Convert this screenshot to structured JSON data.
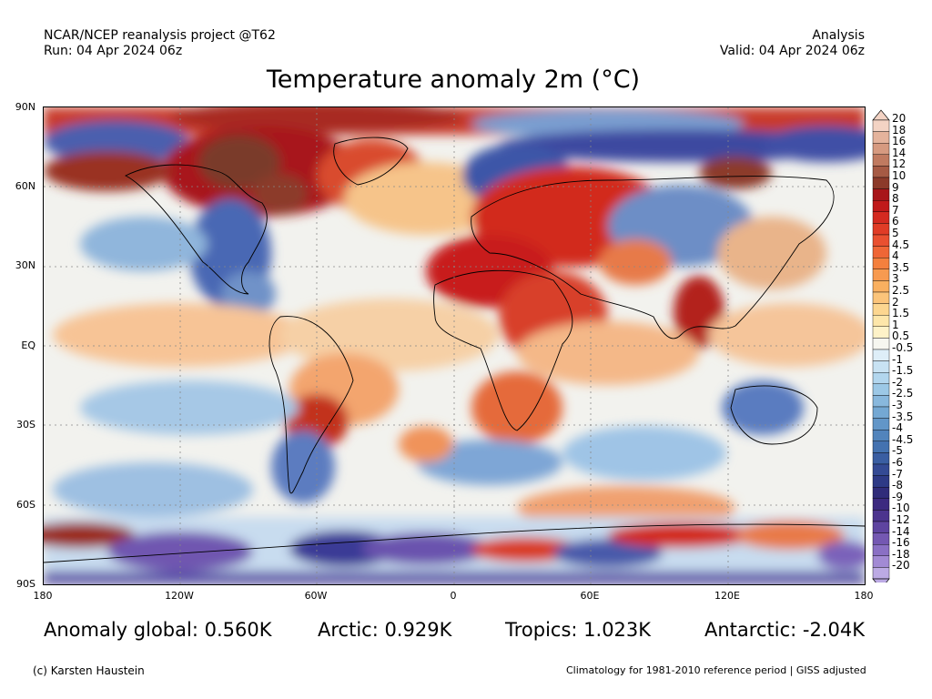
{
  "header": {
    "source": "NCAR/NCEP reanalysis project @T62",
    "run": "Run: 04 Apr 2024 06z",
    "type": "Analysis",
    "valid": "Valid: 04 Apr 2024 06z"
  },
  "title": "Temperature anomaly 2m (°C)",
  "axes": {
    "lat_labels": [
      "90N",
      "60N",
      "30N",
      "EQ",
      "30S",
      "60S",
      "90S"
    ],
    "lon_labels": [
      "180",
      "120W",
      "60W",
      "0",
      "60E",
      "120E",
      "180"
    ]
  },
  "stats": {
    "global": "Anomaly global: 0.560K",
    "arctic": "Arctic: 0.929K",
    "tropics": "Tropics: 1.023K",
    "antarctic": "Antarctic: -2.04K"
  },
  "footer": {
    "credit": "(c) Karsten Haustein",
    "note": "Climatology for 1981-2010 reference period | GISS adjusted"
  },
  "colorbar": {
    "labels": [
      "20",
      "18",
      "16",
      "14",
      "12",
      "10",
      "9",
      "8",
      "7",
      "6",
      "5",
      "4.5",
      "4",
      "3.5",
      "3",
      "2.5",
      "2",
      "1.5",
      "1",
      "0.5",
      "-0.5",
      "-1",
      "-1.5",
      "-2",
      "-2.5",
      "-3",
      "-3.5",
      "-4",
      "-4.5",
      "-5",
      "-6",
      "-7",
      "-8",
      "-9",
      "-10",
      "-12",
      "-14",
      "-16",
      "-18",
      "-20"
    ],
    "colors": [
      "#f3d3c4",
      "#e4b39c",
      "#d69a80",
      "#c07a60",
      "#a65a44",
      "#8c3a2a",
      "#a8161a",
      "#c01a1a",
      "#d42a20",
      "#e03c26",
      "#e95030",
      "#ef6636",
      "#f4803e",
      "#f79a50",
      "#f9b060",
      "#fbc47a",
      "#fcd690",
      "#fde6aa",
      "#fef2c8",
      "#f6f6f0",
      "#deeef8",
      "#c8e2f3",
      "#b2d6ee",
      "#9cc8e6",
      "#88b8dd",
      "#74a8d3",
      "#6296c8",
      "#5284bc",
      "#4472b0",
      "#3a5ea2",
      "#344a94",
      "#2e3a86",
      "#302c7a",
      "#3c2a80",
      "#4c348e",
      "#5e44a0",
      "#7458b2",
      "#8a70c4",
      "#a28ad4",
      "#bcaae4"
    ]
  }
}
